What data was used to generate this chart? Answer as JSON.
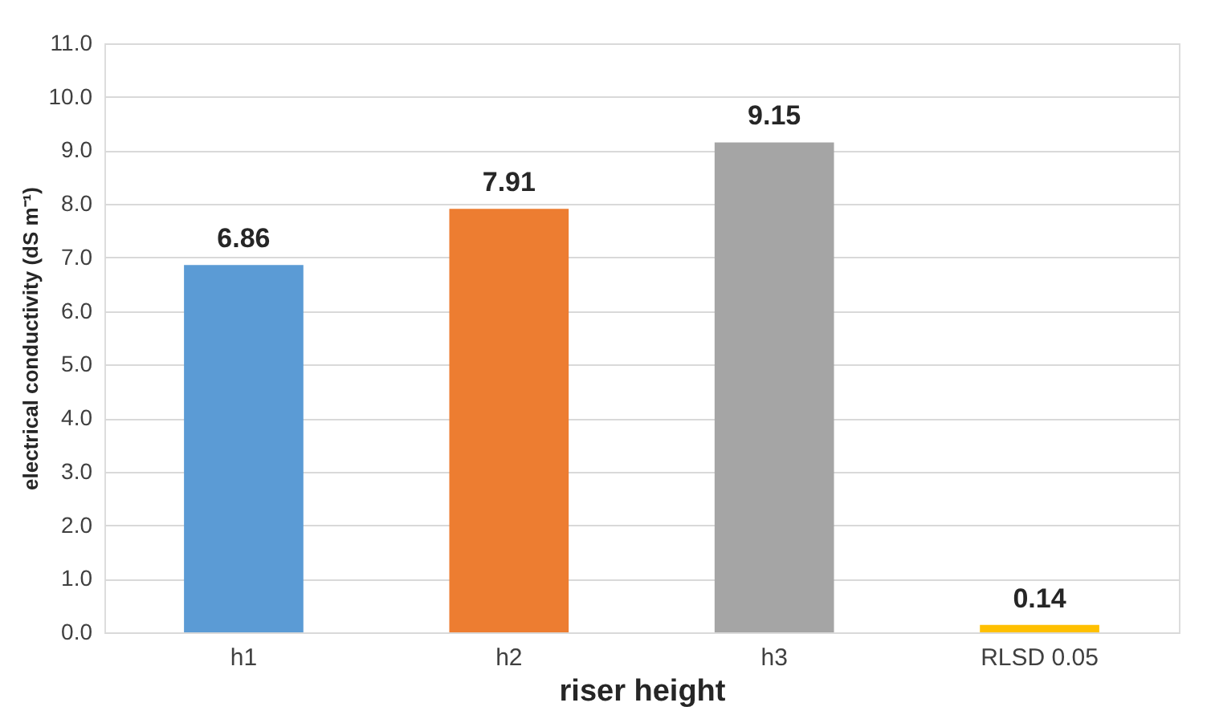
{
  "chart_data": {
    "type": "bar",
    "xlabel": "riser height",
    "ylabel": "electrical conductivity (dS m⁻¹)",
    "categories": [
      "h1",
      "h2",
      "h3",
      "RLSD 0.05"
    ],
    "values": [
      6.86,
      7.91,
      9.15,
      0.14
    ],
    "colors": [
      "#5b9bd5",
      "#ed7d31",
      "#a5a5a5",
      "#ffc000"
    ],
    "ylim": [
      0,
      11
    ],
    "yticks": [
      {
        "value": 0,
        "label": "0.0"
      },
      {
        "value": 1,
        "label": "1.0"
      },
      {
        "value": 2,
        "label": "2.0"
      },
      {
        "value": 3,
        "label": "3.0"
      },
      {
        "value": 4,
        "label": "4.0"
      },
      {
        "value": 5,
        "label": "5.0"
      },
      {
        "value": 6,
        "label": "6.0"
      },
      {
        "value": 7,
        "label": "7.0"
      },
      {
        "value": 8,
        "label": "8.0"
      },
      {
        "value": 9,
        "label": "9.0"
      },
      {
        "value": 10,
        "label": "10.0"
      },
      {
        "value": 11,
        "label": "11.0"
      }
    ],
    "grid": "y",
    "data_labels": true
  }
}
